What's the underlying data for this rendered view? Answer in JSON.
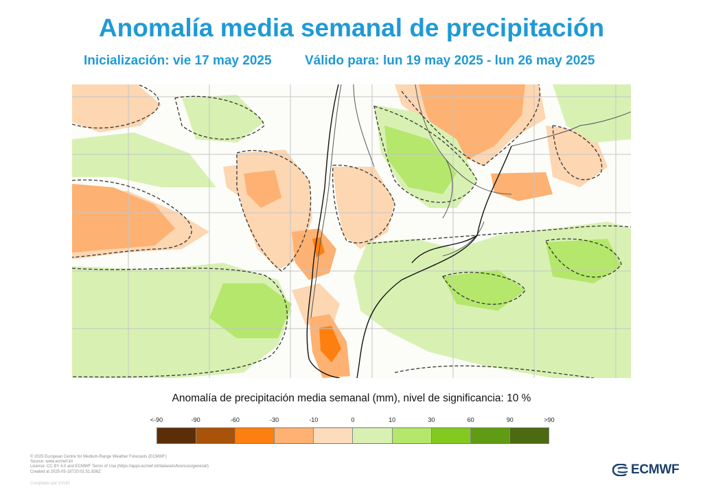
{
  "header": {
    "title": "Anomalía media semanal de precipitación",
    "initialization": "Inicialización: vie 17 may 2025",
    "valid": "Válido para: lun 19 may 2025 - lun 26 may 2025"
  },
  "legend": {
    "title": "Anomalía de precipitación media semanal (mm), nivel de significancia: 10 %",
    "labels": [
      "<-90",
      "-90",
      "-60",
      "-30",
      "-10",
      "0",
      "10",
      "30",
      "60",
      "90",
      ">90"
    ],
    "colors": [
      "#5c2e08",
      "#a95209",
      "#fd7f0f",
      "#fdb173",
      "#fddcbc",
      "#d8f1b3",
      "#b4e76b",
      "#82ca1f",
      "#5f9c14",
      "#4b6a12"
    ]
  },
  "credits": [
    "© 2025 European Centre for Medium-Range Weather Forecasts (ECMWF)",
    "Source: www.ecmwf.int",
    "Licence: CC BY 4.0 and ECMWF Terms of Use (https://apps.ecmwf.int/datasets/licences/general/)",
    "Created at 2025-05-18T20:01:51.836Z"
  ],
  "compiled": "Compilado por VVUG",
  "logo": {
    "text": "ECMWF",
    "icon": "ecmwf-logo-icon",
    "color": "#1b3f6b"
  },
  "map": {
    "region": "southern-south-america",
    "gridlines": true,
    "significance_contours": "dashed"
  }
}
